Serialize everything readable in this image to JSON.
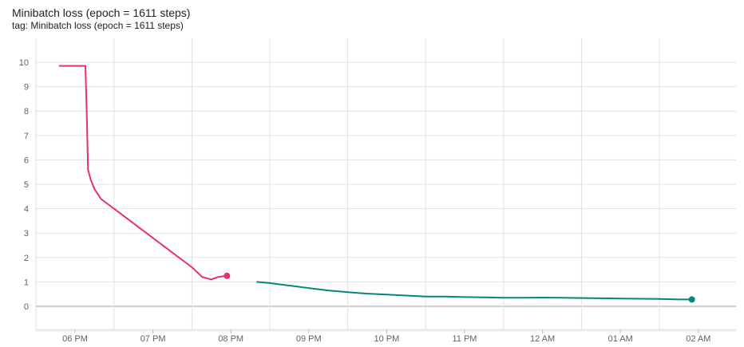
{
  "header": {
    "title": "Minibatch loss (epoch = 1611 steps)",
    "tag": "tag: Minibatch loss (epoch = 1611 steps)"
  },
  "chart_data": {
    "type": "line",
    "title": "Minibatch loss (epoch = 1611 steps)",
    "xlabel": "",
    "ylabel": "",
    "x_ticks": [
      "06 PM",
      "07 PM",
      "08 PM",
      "09 PM",
      "10 PM",
      "11 PM",
      "12 AM",
      "01 AM",
      "02 AM"
    ],
    "y_ticks": [
      0,
      1,
      2,
      3,
      4,
      5,
      6,
      7,
      8,
      9,
      10
    ],
    "xlim": [
      "17:35",
      "02:30"
    ],
    "ylim": [
      -1,
      10.5
    ],
    "grid": true,
    "series": [
      {
        "color": "#e7306c",
        "x": [
          "17:48",
          "17:52",
          "17:56",
          "18:00",
          "18:05",
          "18:08",
          "18:09",
          "18:10",
          "18:12",
          "18:15",
          "18:20",
          "18:25",
          "18:30",
          "18:40",
          "18:50",
          "19:00",
          "19:10",
          "19:20",
          "19:30",
          "19:38",
          "19:45",
          "19:50",
          "19:57"
        ],
        "y": [
          9.85,
          9.85,
          9.85,
          9.85,
          9.85,
          9.85,
          8.0,
          5.6,
          5.2,
          4.8,
          4.4,
          4.2,
          4.0,
          3.6,
          3.2,
          2.8,
          2.4,
          2.0,
          1.6,
          1.2,
          1.1,
          1.2,
          1.25
        ]
      },
      {
        "color": "#00897b",
        "x": [
          "20:20",
          "20:30",
          "20:45",
          "21:00",
          "21:15",
          "21:30",
          "21:45",
          "22:00",
          "22:15",
          "22:30",
          "22:45",
          "23:00",
          "23:15",
          "23:30",
          "23:45",
          "00:00",
          "00:15",
          "00:30",
          "00:45",
          "01:00",
          "01:15",
          "01:30",
          "01:45",
          "01:55"
        ],
        "y": [
          1.0,
          0.95,
          0.85,
          0.75,
          0.65,
          0.58,
          0.52,
          0.48,
          0.44,
          0.4,
          0.4,
          0.38,
          0.37,
          0.35,
          0.35,
          0.36,
          0.35,
          0.34,
          0.33,
          0.32,
          0.31,
          0.3,
          0.28,
          0.28
        ]
      }
    ]
  }
}
